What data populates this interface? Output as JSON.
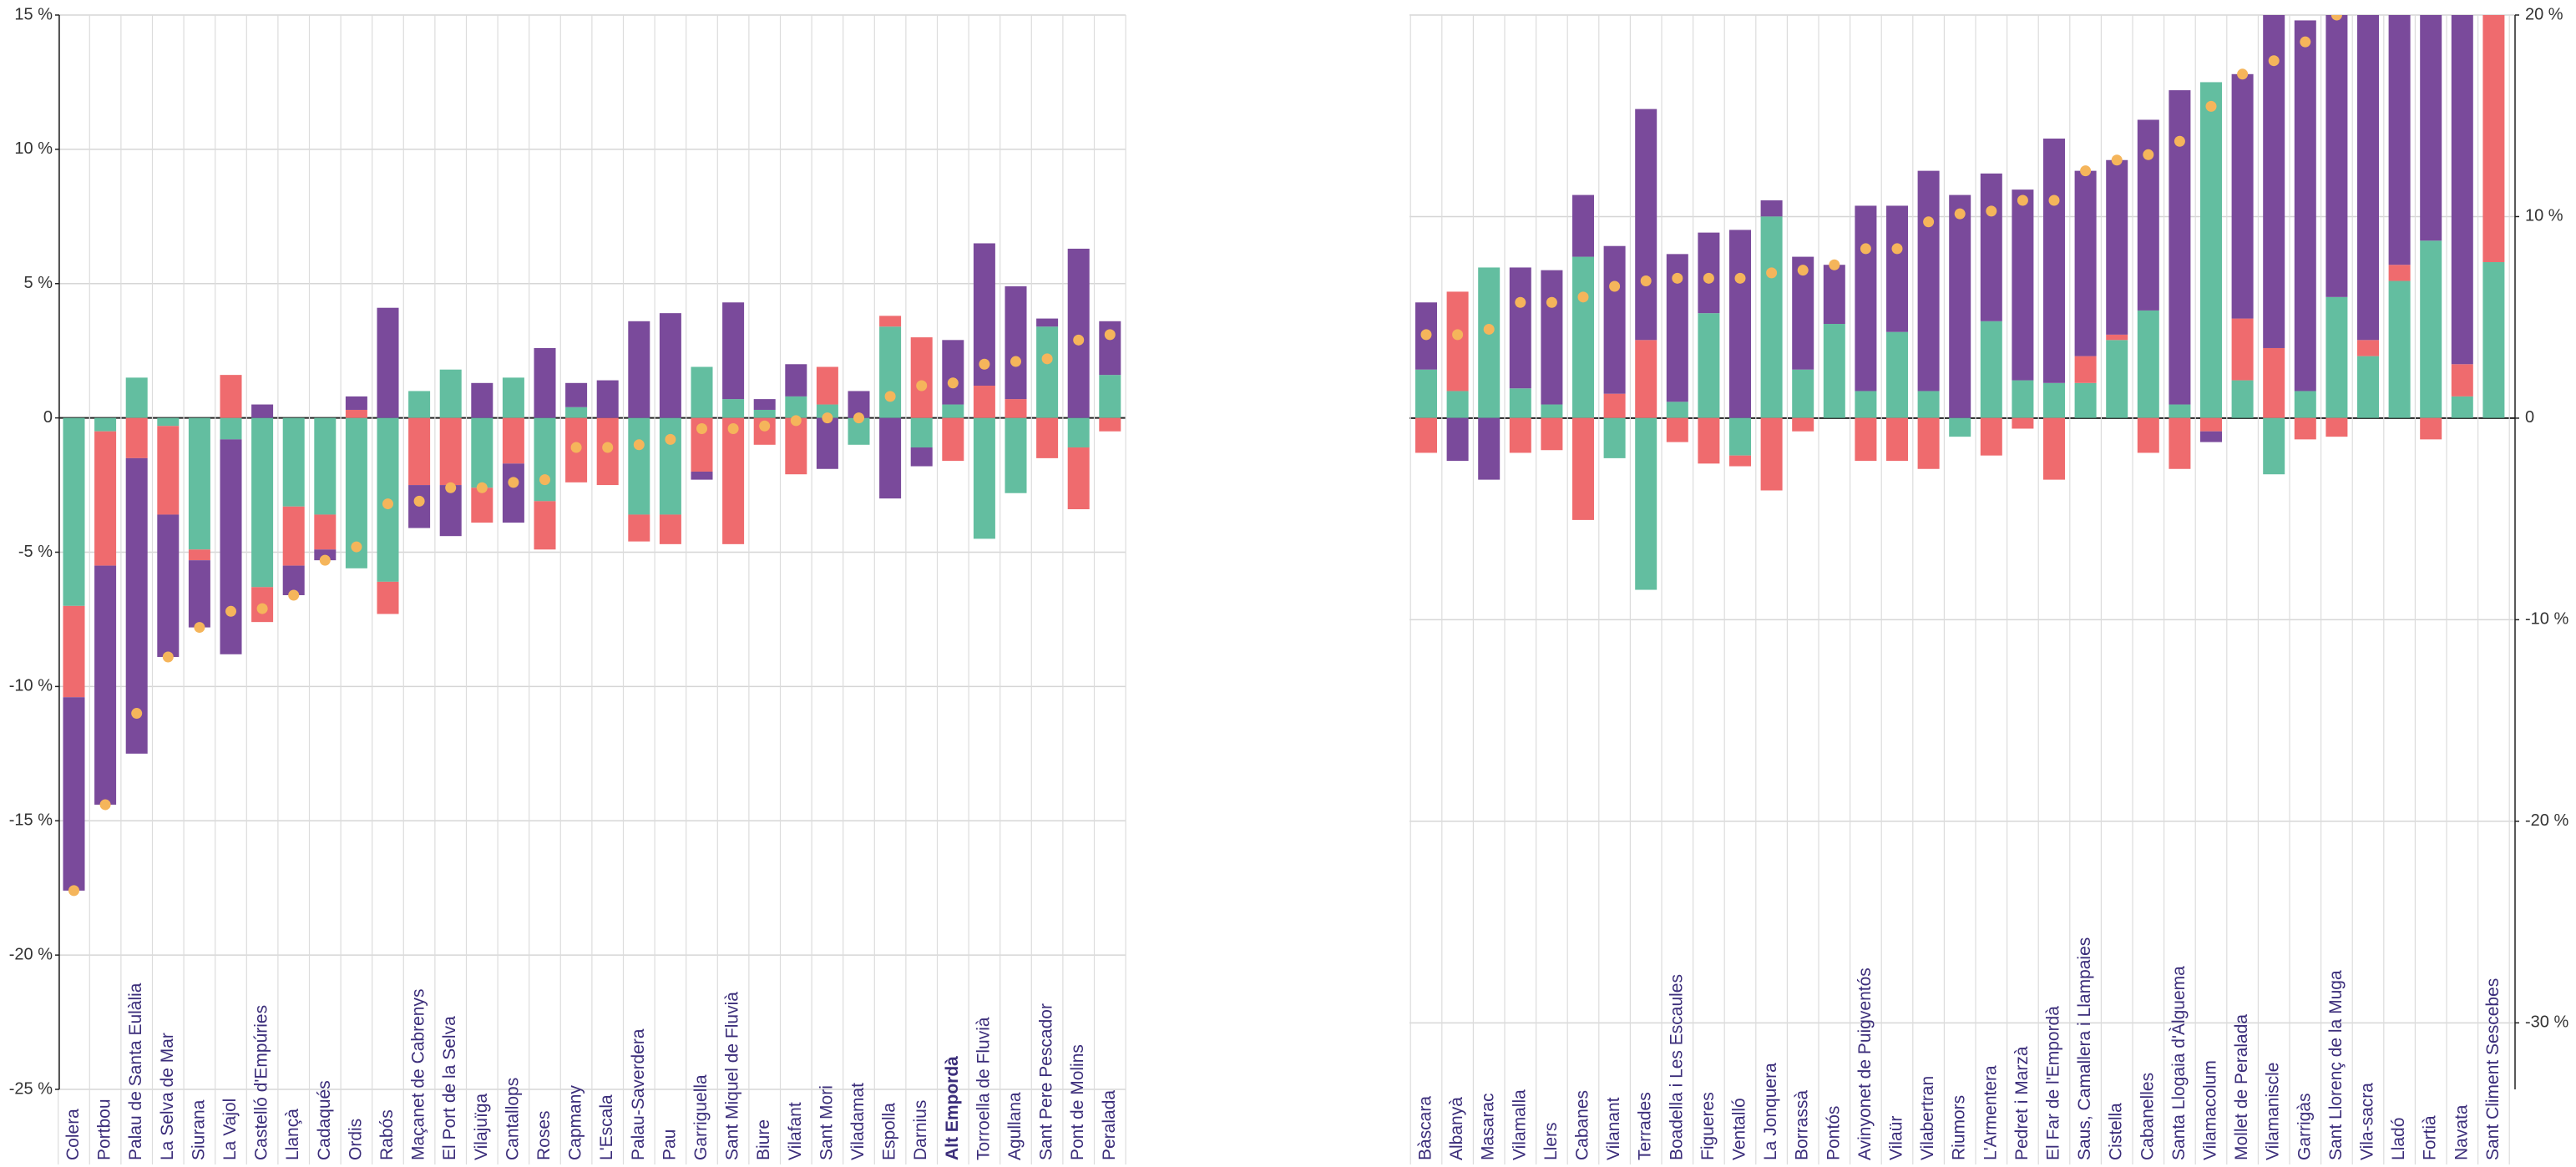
{
  "chart_data": {
    "type": "bar",
    "ylim": [
      -25,
      15
    ],
    "yticks": [
      {
        "value": 15,
        "label": "15 %"
      },
      {
        "value": 10,
        "label": "10 %"
      },
      {
        "value": 5,
        "label": "5 %"
      },
      0,
      {
        "value": -5,
        "label": "-5 %"
      },
      {
        "value": -10,
        "label": "-10 %"
      },
      {
        "value": -15,
        "label": "-15 %"
      },
      {
        "value": -20,
        "label": "-20 %"
      },
      {
        "value": -25,
        "label": "-25 %"
      }
    ],
    "y2lim": [
      -33.3,
      20
    ],
    "y2ticks": [
      {
        "value": 20,
        "label": "20 %"
      },
      {
        "value": 10,
        "label": "10 %"
      },
      0,
      {
        "value": -10,
        "label": "-10 %"
      },
      {
        "value": -20,
        "label": "-20 %"
      },
      {
        "value": -30,
        "label": "-30 %"
      }
    ],
    "grid": true,
    "dot_color": "#f5b55b",
    "panels": [
      {
        "categories": [
          "Colera",
          "Portbou",
          "Palau de Santa Eulàlia",
          "La Selva de Mar",
          "Siurana",
          "La Vajol",
          "Castelló d'Empúries",
          "Llançà",
          "Cadaqués",
          "Ordis",
          "Rabós",
          "Maçanet de Cabrenys",
          "El Port de la Selva",
          "Vilajuïga",
          "Cantallops",
          "Roses",
          "Capmany",
          "L'Escala",
          "Palau-Saverdera",
          "Pau",
          "Garriguella",
          "Sant Miquel de Fluvià",
          "Biure",
          "Vilafant",
          "Sant Mori",
          "Viladamat",
          "Espolla",
          "Darnius",
          "Alt Empordà",
          "Torroella de Fluvià",
          "Agullana",
          "Sant Pere Pescador",
          "Pont de Molins",
          "Peralada"
        ],
        "highlight_index": 28,
        "series": [
          {
            "color": "#63bea0",
            "values": [
              -7,
              -0.5,
              1.5,
              -0.3,
              -4.9,
              -0.8,
              -6.3,
              -3.3,
              -3.6,
              -5.6,
              -6.1,
              1,
              1.8,
              -2.6,
              1.5,
              -3.1,
              0.4,
              0,
              -3.6,
              -3.6,
              1.9,
              0.7,
              0.3,
              0.8,
              0.5,
              -1,
              3.4,
              -1.1,
              0.5,
              -4.5,
              -2.8,
              3.4,
              -1.1,
              1.6
            ]
          },
          {
            "color": "#ef6b6e",
            "values": [
              -3.4,
              -5,
              -1.5,
              -3.3,
              -0.4,
              1.6,
              -1.3,
              -2.2,
              -1.3,
              0.3,
              -1.2,
              -2.5,
              -2.5,
              -1.3,
              -1.7,
              -1.8,
              -2.4,
              -2.5,
              -1,
              -1.1,
              -2,
              -4.7,
              -1,
              -2.1,
              1.4,
              0,
              0.4,
              3,
              -1.6,
              1.2,
              0.7,
              -1.5,
              -2.3,
              -0.5
            ]
          },
          {
            "color": "#7a4a9b",
            "values": [
              -7.2,
              -8.9,
              -11,
              -5.3,
              -2.5,
              -8,
              0.5,
              -1.1,
              -0.4,
              0.5,
              4.1,
              -1.6,
              -1.9,
              1.3,
              -2.2,
              2.6,
              0.9,
              1.4,
              3.6,
              3.9,
              -0.3,
              3.6,
              0.4,
              1.2,
              -1.9,
              1,
              -3,
              -0.7,
              2.4,
              5.3,
              4.2,
              0.3,
              6.3,
              2
            ]
          }
        ],
        "totals": [
          -17.6,
          -14.4,
          -11,
          -8.9,
          -7.8,
          -7.2,
          -7.1,
          -6.6,
          -5.3,
          -4.8,
          -3.2,
          -3.1,
          -2.6,
          -2.6,
          -2.4,
          -2.3,
          -1.1,
          -1.1,
          -1,
          -0.8,
          -0.4,
          -0.4,
          -0.3,
          -0.1,
          0,
          0,
          0.8,
          1.2,
          1.3,
          2,
          2.1,
          2.2,
          2.9,
          3.1
        ]
      },
      {
        "categories": [
          "Bàscara",
          "Albanyà",
          "Masarac",
          "Vilamalla",
          "Llers",
          "Cabanes",
          "Vilanant",
          "Terrades",
          "Boadella i Les Escaules",
          "Figueres",
          "Ventalló",
          "La Jonquera",
          "Borrassà",
          "Pontós",
          "Avinyonet de Puigventós",
          "Vilaür",
          "Vilabertran",
          "Riumors",
          "L'Armentera",
          "Pedret i Marzà",
          "El Far de l'Empordà",
          "Saus, Camallera i Llampaies",
          "Cistella",
          "Cabanelles",
          "Santa Llogaia d'Àlguema",
          "Vilamacolum",
          "Mollet de Peralada",
          "Vilamaniscle",
          "Garrigàs",
          "Sant Llorenç de la Muga",
          "Vila-sacra",
          "Lladó",
          "Fortià",
          "Navata",
          "Sant Climent Sescebes"
        ],
        "series": [
          {
            "color": "#63bea0",
            "values": [
              1.8,
              1,
              5.6,
              1.1,
              0.5,
              6,
              -1.5,
              -6.4,
              0.6,
              3.9,
              -1.4,
              7.5,
              1.8,
              3.5,
              1,
              3.2,
              1,
              -0.7,
              3.6,
              1.4,
              1.3,
              1.3,
              2.9,
              4,
              0.5,
              12.5,
              1.4,
              -2.1,
              1,
              4.5,
              2.3,
              5.1,
              6.6,
              0.8,
              5.8
            ]
          },
          {
            "color": "#ef6b6e",
            "values": [
              -1.3,
              3.7,
              0,
              -1.3,
              -1.2,
              -3.8,
              0.9,
              2.9,
              -0.9,
              -1.7,
              -0.4,
              -2.7,
              -0.5,
              0,
              -1.6,
              -1.6,
              -1.9,
              0,
              -1.4,
              -0.4,
              -2.3,
              1,
              0.2,
              -1.3,
              -1.9,
              -0.5,
              2.3,
              2.6,
              -0.8,
              -0.7,
              0.6,
              0.6,
              -0.8,
              1.2,
              12
            ]
          },
          {
            "color": "#7a4a9b",
            "values": [
              2.5,
              -1.6,
              -2.3,
              4.5,
              5,
              2.3,
              5.5,
              8.6,
              5.5,
              3,
              7,
              0.6,
              4.2,
              2.2,
              6.9,
              4.7,
              8.2,
              8.3,
              5.5,
              7.1,
              9.1,
              6.9,
              6.5,
              7.1,
              11.7,
              -0.4,
              9.1,
              12.8,
              13.8,
              11.2,
              14,
              12,
              12,
              14,
              0
            ]
          }
        ],
        "totals": [
          3.1,
          3.1,
          3.3,
          4.3,
          4.3,
          4.5,
          4.9,
          5.1,
          5.2,
          5.2,
          5.2,
          5.4,
          5.5,
          5.7,
          6.3,
          6.3,
          7.3,
          7.6,
          7.7,
          8.1,
          8.1,
          9.2,
          9.6,
          9.8,
          10.3,
          11.6,
          12.8,
          13.3,
          14,
          15,
          16.9,
          17.7,
          17.8,
          16,
          17.8
        ]
      }
    ]
  }
}
